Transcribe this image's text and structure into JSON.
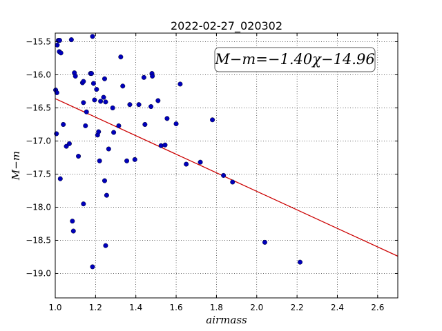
{
  "chart_data": {
    "type": "scatter",
    "title": "2022-02-27_020302",
    "xlabel": "airmass",
    "ylabel": "M−m",
    "xlim": [
      1.0,
      2.7
    ],
    "ylim": [
      -19.37,
      -15.37
    ],
    "y_inverted": true,
    "grid": true,
    "xticks": [
      "1.0",
      "1.2",
      "1.4",
      "1.6",
      "1.8",
      "2.0",
      "2.2",
      "2.4",
      "2.6"
    ],
    "yticks": [
      "−15.5",
      "−16.0",
      "−16.5",
      "−17.0",
      "−17.5",
      "−18.0",
      "−18.5",
      "−19.0"
    ],
    "annotation": "M−m=−1.40χ−14.96",
    "fit": {
      "slope": -1.4,
      "intercept": -14.96,
      "color": "#cc0000"
    },
    "marker_color": "#0000bb",
    "points": [
      [
        1.002,
        -16.23
      ],
      [
        1.008,
        -16.27
      ],
      [
        1.006,
        -16.89
      ],
      [
        1.01,
        -15.55
      ],
      [
        1.015,
        -15.48
      ],
      [
        1.02,
        -15.65
      ],
      [
        1.022,
        -15.48
      ],
      [
        1.028,
        -15.67
      ],
      [
        1.025,
        -17.57
      ],
      [
        1.04,
        -16.75
      ],
      [
        1.055,
        -17.08
      ],
      [
        1.07,
        -17.04
      ],
      [
        1.08,
        -15.47
      ],
      [
        1.085,
        -18.21
      ],
      [
        1.09,
        -18.36
      ],
      [
        1.095,
        -15.97
      ],
      [
        1.1,
        -16.02
      ],
      [
        1.115,
        -17.23
      ],
      [
        1.135,
        -16.12
      ],
      [
        1.14,
        -16.1
      ],
      [
        1.14,
        -16.42
      ],
      [
        1.14,
        -17.95
      ],
      [
        1.15,
        -16.77
      ],
      [
        1.155,
        -16.56
      ],
      [
        1.175,
        -15.98
      ],
      [
        1.18,
        -15.98
      ],
      [
        1.185,
        -15.42
      ],
      [
        1.185,
        -18.9
      ],
      [
        1.19,
        -16.13
      ],
      [
        1.195,
        -16.38
      ],
      [
        1.205,
        -16.22
      ],
      [
        1.21,
        -16.91
      ],
      [
        1.215,
        -16.86
      ],
      [
        1.22,
        -17.3
      ],
      [
        1.225,
        -16.4
      ],
      [
        1.24,
        -16.34
      ],
      [
        1.245,
        -16.06
      ],
      [
        1.245,
        -17.6
      ],
      [
        1.25,
        -16.41
      ],
      [
        1.25,
        -18.58
      ],
      [
        1.255,
        -17.82
      ],
      [
        1.265,
        -17.12
      ],
      [
        1.285,
        -16.5
      ],
      [
        1.29,
        -16.87
      ],
      [
        1.315,
        -16.77
      ],
      [
        1.325,
        -15.73
      ],
      [
        1.335,
        -16.17
      ],
      [
        1.355,
        -17.3
      ],
      [
        1.37,
        -16.45
      ],
      [
        1.395,
        -17.28
      ],
      [
        1.415,
        -16.45
      ],
      [
        1.44,
        -16.04
      ],
      [
        1.445,
        -16.75
      ],
      [
        1.475,
        -16.48
      ],
      [
        1.48,
        -15.98
      ],
      [
        1.482,
        -16.02
      ],
      [
        1.51,
        -16.39
      ],
      [
        1.525,
        -17.07
      ],
      [
        1.545,
        -17.06
      ],
      [
        1.555,
        -16.66
      ],
      [
        1.6,
        -16.74
      ],
      [
        1.62,
        -16.14
      ],
      [
        1.65,
        -17.35
      ],
      [
        1.72,
        -17.32
      ],
      [
        1.78,
        -16.68
      ],
      [
        1.835,
        -17.52
      ],
      [
        1.88,
        -17.62
      ],
      [
        2.04,
        -18.53
      ],
      [
        2.215,
        -18.83
      ]
    ]
  }
}
